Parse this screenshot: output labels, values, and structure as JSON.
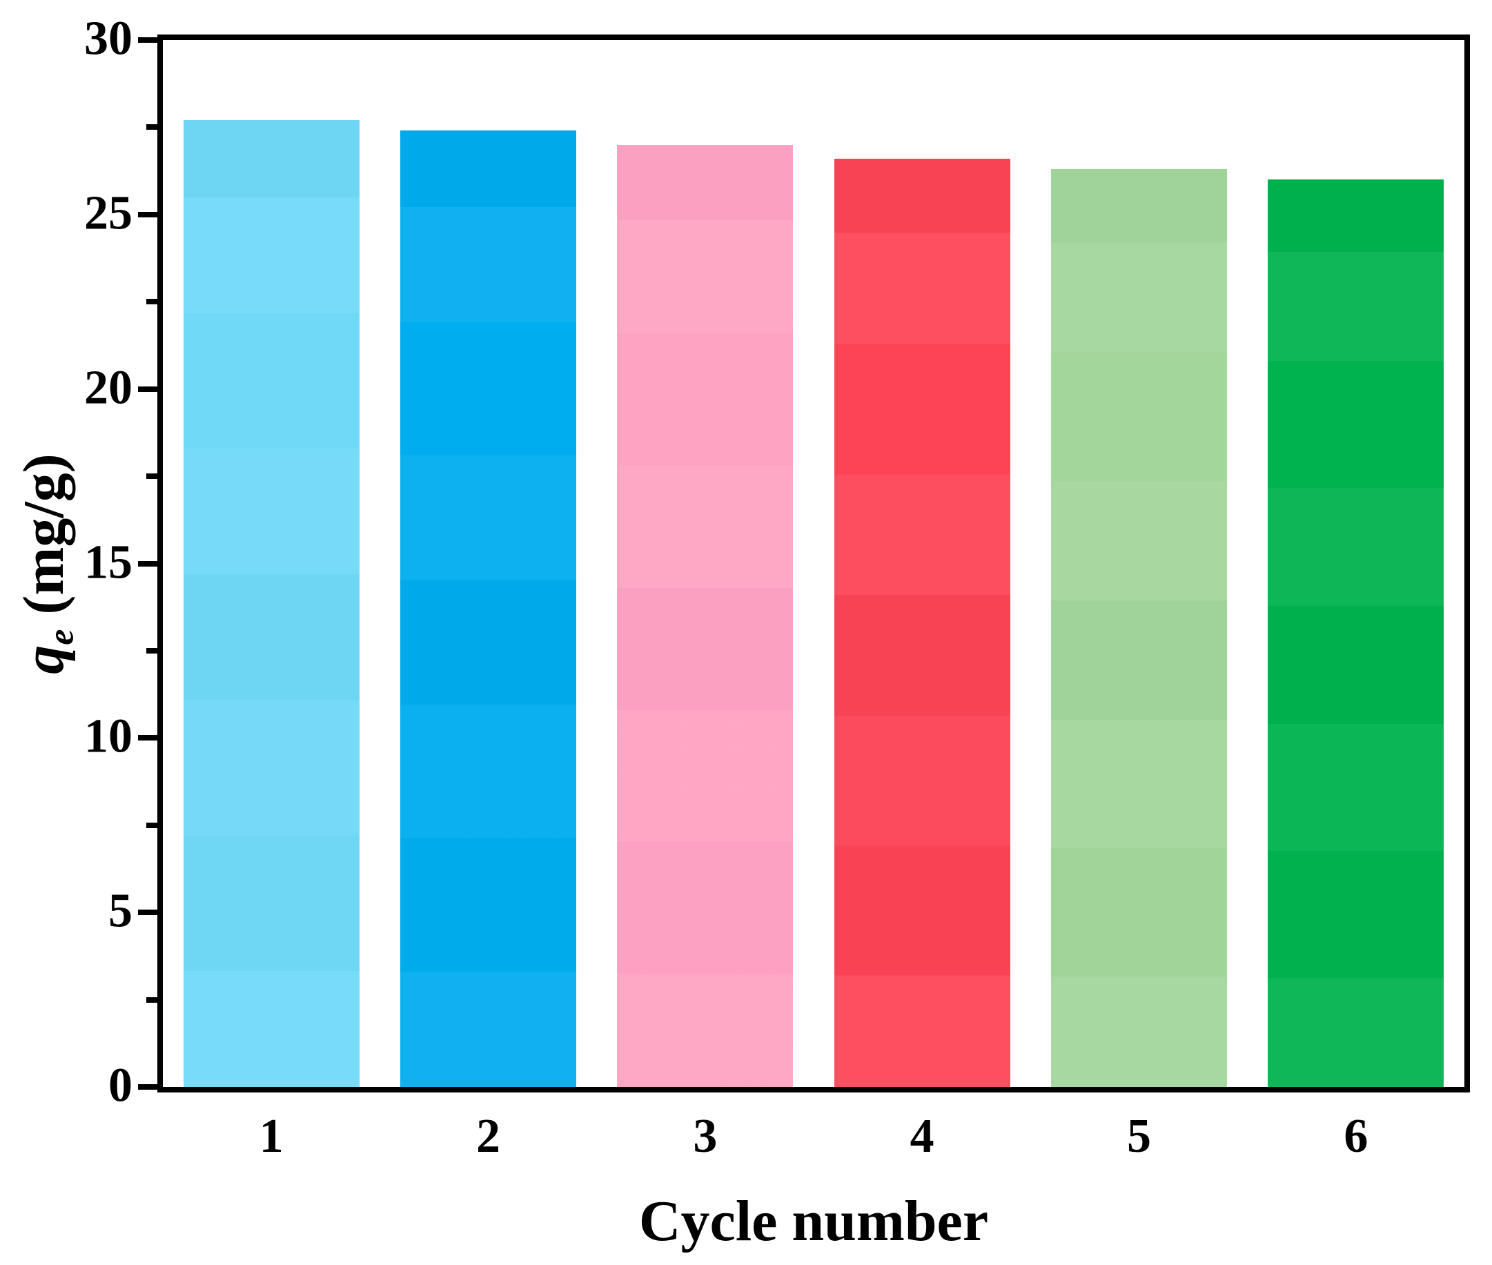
{
  "figure": {
    "background": "#ffffff",
    "axis_color": "#000000"
  },
  "chart_data": {
    "type": "bar",
    "title": "",
    "xlabel": "Cycle number",
    "ylabel": "q_e (mg/g)",
    "ylabel_parts": {
      "symbol": "q",
      "subscript": "e",
      "units": " (mg/g)"
    },
    "categories": [
      "1",
      "2",
      "3",
      "4",
      "5",
      "6"
    ],
    "values": [
      27.7,
      27.4,
      27.0,
      26.6,
      26.3,
      26.0
    ],
    "bar_colors": [
      "#70D9F7",
      "#00ADEE",
      "#FFA3C3",
      "#FC4455",
      "#A3D69B",
      "#00B34E"
    ],
    "ylim": [
      0,
      30
    ],
    "yticks_major": [
      0,
      5,
      10,
      15,
      20,
      25,
      30
    ],
    "yticks_minor": [
      2.5,
      7.5,
      12.5,
      17.5,
      22.5,
      27.5
    ],
    "grid": false,
    "legend": null,
    "bar_width_fraction": 0.81,
    "tick_direction": "out"
  }
}
